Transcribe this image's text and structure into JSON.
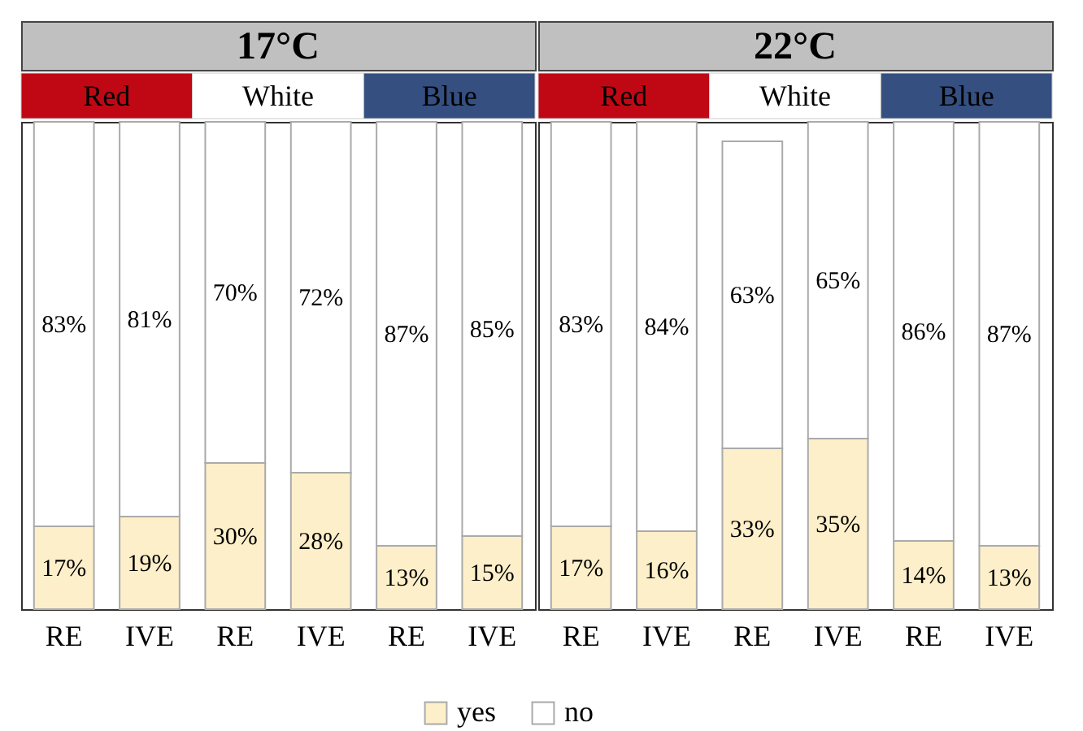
{
  "chart_data": [
    {
      "type": "bar",
      "title": "17°C",
      "annotations": [
        "Red",
        "White",
        "Blue"
      ],
      "categories": [
        "RE",
        "IVE",
        "RE",
        "IVE",
        "RE",
        "IVE"
      ],
      "stacked": true,
      "ylim": [
        0,
        100
      ],
      "tick_labels": "x",
      "legend": "bottom",
      "series": [
        {
          "name": "yes",
          "color": "#fdefc9",
          "values": [
            17,
            19,
            30,
            28,
            13,
            15
          ],
          "value_labels": [
            "17%",
            "19%",
            "30%",
            "28%",
            "13%",
            "15%"
          ]
        },
        {
          "name": "no",
          "color": "#ffffff",
          "values": [
            83,
            81,
            70,
            72,
            87,
            85
          ],
          "value_labels": [
            "83%",
            "81%",
            "70%",
            "72%",
            "87%",
            "85%"
          ]
        }
      ]
    },
    {
      "type": "bar",
      "title": "22°C",
      "annotations": [
        "Red",
        "White",
        "Blue"
      ],
      "categories": [
        "RE",
        "IVE",
        "RE",
        "IVE",
        "RE",
        "IVE"
      ],
      "stacked": true,
      "ylim": [
        0,
        100
      ],
      "tick_labels": "x",
      "legend": "bottom",
      "series": [
        {
          "name": "yes",
          "color": "#fdefc9",
          "values": [
            17,
            16,
            33,
            35,
            14,
            13
          ],
          "value_labels": [
            "17%",
            "16%",
            "33%",
            "35%",
            "14%",
            "13%"
          ]
        },
        {
          "name": "no",
          "color": "#ffffff",
          "values": [
            83,
            84,
            63,
            65,
            86,
            87
          ],
          "value_labels": [
            "83%",
            "84%",
            "63%",
            "65%",
            "86%",
            "87%"
          ]
        }
      ]
    }
  ]
}
